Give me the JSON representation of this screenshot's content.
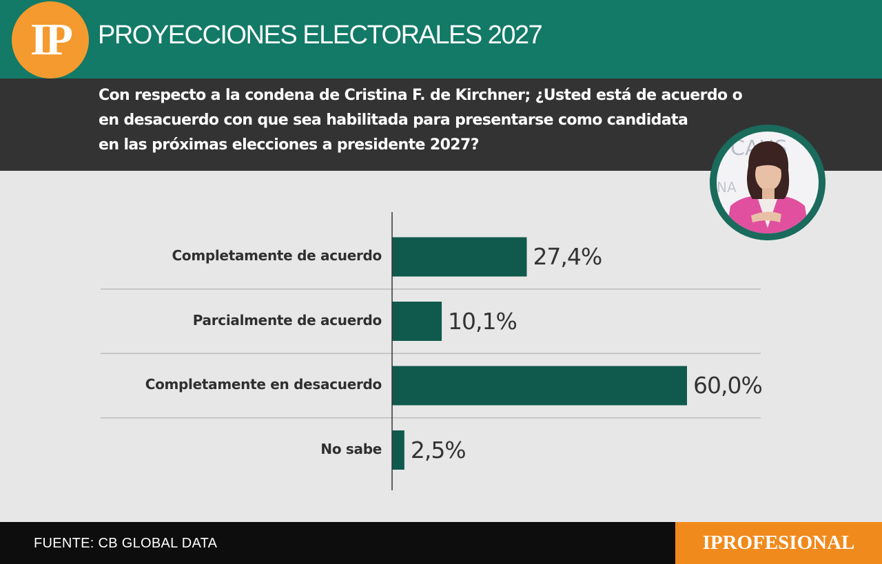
{
  "header": {
    "logo_text": "IP",
    "title": "PROYECCIONES ELECTORALES 2027"
  },
  "question": {
    "lines": [
      "Con respecto a la condena de Cristina F. de Kirchner; ¿Usted está de acuerdo o",
      "en desacuerdo con que sea habilitada para presentarse como candidata",
      "en las próximas elecciones a presidente 2027?"
    ]
  },
  "chart_data": {
    "type": "bar",
    "orientation": "horizontal",
    "categories": [
      "Completamente de acuerdo",
      "Parcialmente de acuerdo",
      "Completamente en desacuerdo",
      "No sabe"
    ],
    "values": [
      27.4,
      10.1,
      60.0,
      2.5
    ],
    "value_labels": [
      "27,4%",
      "10,1%",
      "60,0%",
      "2,5%"
    ],
    "bar_color": "#0f5a4c",
    "grid": false
  },
  "footer": {
    "source": "FUENTE: CB GLOBAL DATA",
    "brand": "IPROFESIONAL"
  },
  "colors": {
    "header_green": "#127a67",
    "question_band": "#333333",
    "logo_orange": "#f59a2f",
    "brand_orange": "#f18a1c",
    "background": "#e7e7e7"
  }
}
